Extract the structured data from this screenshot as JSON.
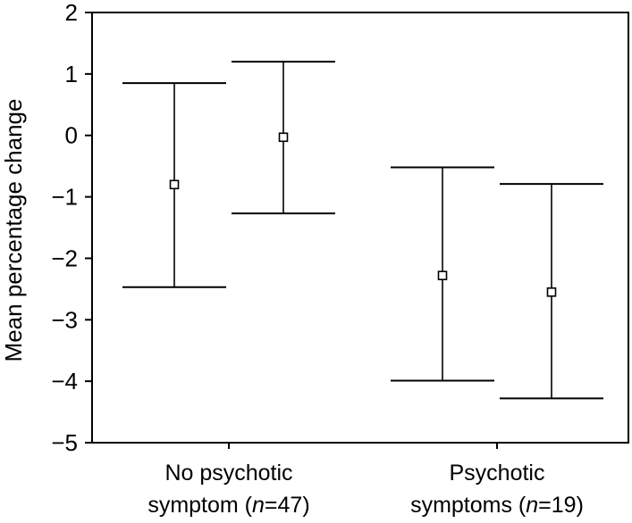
{
  "chart_data": {
    "type": "errorbar",
    "title": "",
    "ylabel": "Mean percentage change",
    "xlabel": "",
    "ylim": [
      -5,
      2
    ],
    "yticks": [
      2,
      1,
      0,
      -1,
      -2,
      -3,
      -4,
      -5
    ],
    "ytick_labels": [
      "2",
      "1",
      "0",
      "−1",
      "−2",
      "−3",
      "−4",
      "−5"
    ],
    "grid": false,
    "categories": [
      {
        "line1": "No psychotic",
        "line2_before": "symptom (",
        "line2_italic": "n",
        "line2_after": "=47)"
      },
      {
        "line1": "Psychotic",
        "line2_before": "symptoms (",
        "line2_italic": "n",
        "line2_after": "=19)"
      }
    ],
    "groups": [
      {
        "category_index": 0,
        "points": [
          {
            "mean": -0.8,
            "upper": 0.85,
            "lower": -2.47
          },
          {
            "mean": -0.03,
            "upper": 1.2,
            "lower": -1.27
          }
        ]
      },
      {
        "category_index": 1,
        "points": [
          {
            "mean": -2.28,
            "upper": -0.52,
            "lower": -3.99
          },
          {
            "mean": -2.55,
            "upper": -0.79,
            "lower": -4.28
          }
        ]
      }
    ]
  }
}
